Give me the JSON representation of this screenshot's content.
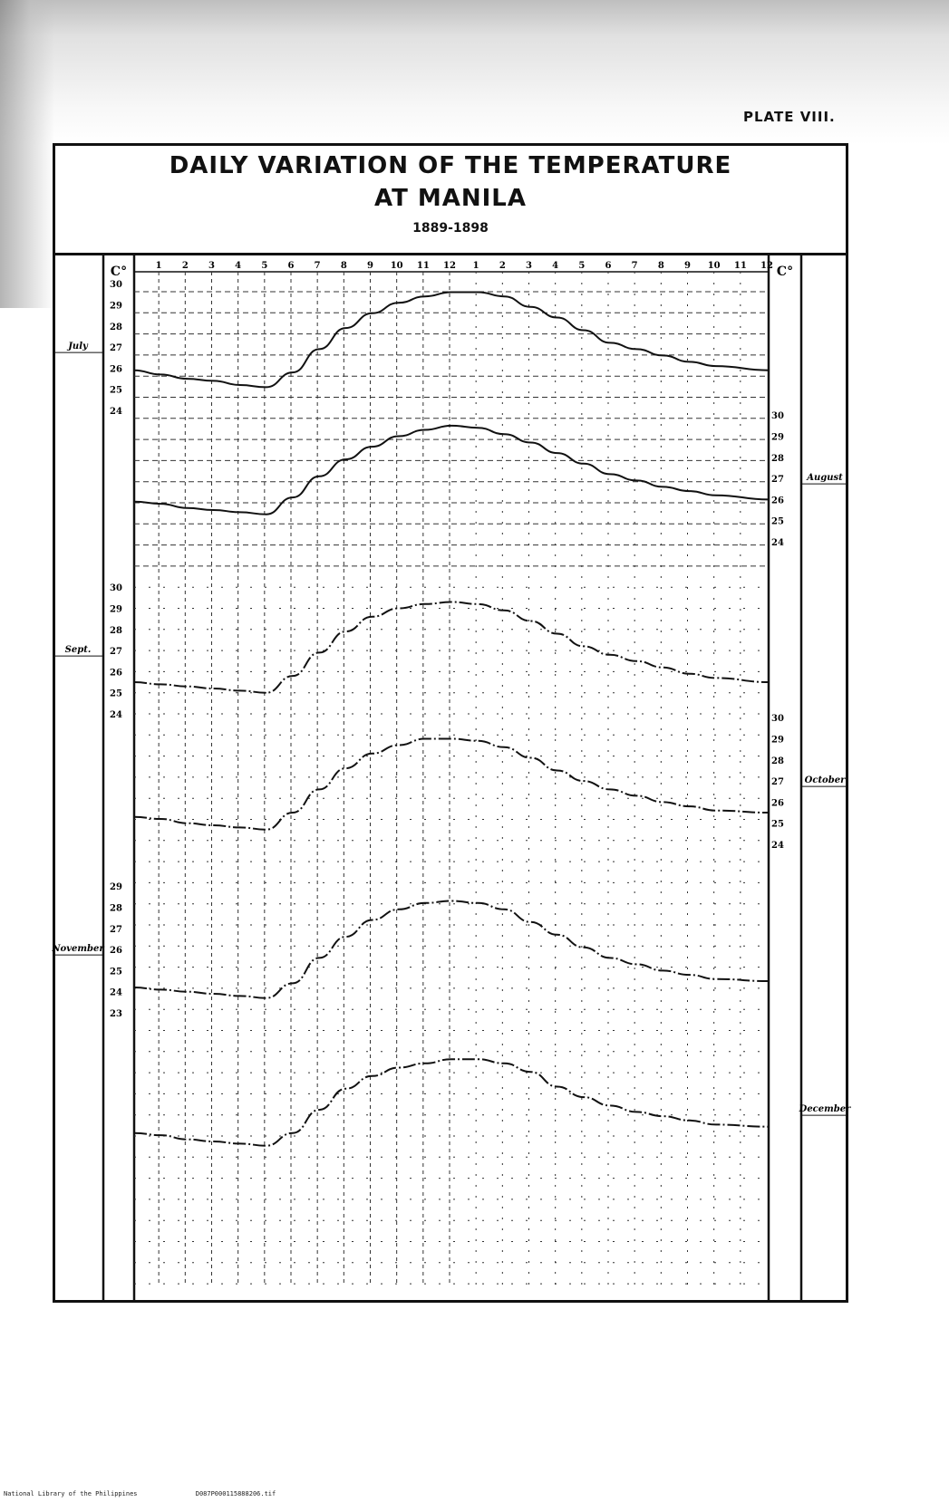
{
  "plate_label": "PLATE VIII.",
  "title_line1": "DAILY VARIATION OF THE TEMPERATURE",
  "title_line2": "AT MANILA",
  "years": "1889-1898",
  "footer": {
    "library": "National Library of the Philippines",
    "file": "D087P000115888206.tif"
  },
  "chart_data": {
    "type": "line",
    "left_unit": "C°",
    "right_unit": "C°",
    "x": [
      "1",
      "2",
      "3",
      "4",
      "5",
      "6",
      "7",
      "8",
      "9",
      "10",
      "11",
      "12",
      "1",
      "2",
      "3",
      "4",
      "5",
      "6",
      "7",
      "8",
      "9",
      "10",
      "11",
      "12"
    ],
    "series": [
      {
        "name": "July",
        "side": "left",
        "scale_ticks": [
          30,
          29,
          28,
          27,
          26,
          25,
          24
        ],
        "ylim": [
          24,
          30
        ],
        "dashed": false,
        "values": [
          25.9,
          25.7,
          25.5,
          25.4,
          25.2,
          25.1,
          25.8,
          26.9,
          27.9,
          28.6,
          29.1,
          29.4,
          29.6,
          29.6,
          29.4,
          28.9,
          28.4,
          27.8,
          27.2,
          26.9,
          26.6,
          26.3,
          26.1,
          25.9
        ]
      },
      {
        "name": "August",
        "side": "right",
        "scale_ticks": [
          30,
          29,
          28,
          27,
          26,
          25,
          24
        ],
        "ylim": [
          24,
          30
        ],
        "dashed": false,
        "values": [
          25.9,
          25.8,
          25.6,
          25.5,
          25.4,
          25.3,
          26.1,
          27.1,
          27.9,
          28.5,
          29.0,
          29.3,
          29.5,
          29.4,
          29.1,
          28.7,
          28.2,
          27.7,
          27.2,
          26.9,
          26.6,
          26.4,
          26.2,
          26.0
        ]
      },
      {
        "name": "Sept.",
        "side": "left",
        "scale_ticks": [
          30,
          29,
          28,
          27,
          26,
          25,
          24
        ],
        "ylim": [
          24,
          30
        ],
        "dashed": true,
        "values": [
          25.5,
          25.4,
          25.3,
          25.2,
          25.1,
          25.0,
          25.8,
          26.9,
          27.9,
          28.6,
          29.0,
          29.2,
          29.3,
          29.2,
          28.9,
          28.4,
          27.8,
          27.2,
          26.8,
          26.5,
          26.2,
          25.9,
          25.7,
          25.5
        ]
      },
      {
        "name": "October",
        "side": "right",
        "scale_ticks": [
          30,
          29,
          28,
          27,
          26,
          25,
          24
        ],
        "ylim": [
          24,
          30
        ],
        "dashed": true,
        "values": [
          25.3,
          25.2,
          25.0,
          24.9,
          24.8,
          24.7,
          25.5,
          26.6,
          27.6,
          28.3,
          28.7,
          29.0,
          29.0,
          28.9,
          28.6,
          28.1,
          27.5,
          27.0,
          26.6,
          26.3,
          26.0,
          25.8,
          25.6,
          25.5
        ]
      },
      {
        "name": "November",
        "side": "left",
        "scale_ticks": [
          29,
          28,
          27,
          26,
          25,
          24,
          23
        ],
        "ylim": [
          23,
          29
        ],
        "dashed": true,
        "values": [
          24.2,
          24.1,
          24.0,
          23.9,
          23.8,
          23.7,
          24.4,
          25.6,
          26.6,
          27.4,
          27.9,
          28.2,
          28.3,
          28.2,
          27.9,
          27.3,
          26.7,
          26.1,
          25.6,
          25.3,
          25.0,
          24.8,
          24.6,
          24.5
        ]
      },
      {
        "name": "December",
        "side": "right",
        "scale_ticks": [],
        "ylim": [
          22,
          28
        ],
        "dashed": true,
        "values": [
          23.9,
          23.8,
          23.6,
          23.5,
          23.4,
          23.3,
          23.9,
          25.0,
          26.0,
          26.6,
          27.0,
          27.2,
          27.4,
          27.4,
          27.2,
          26.8,
          26.1,
          25.6,
          25.2,
          24.9,
          24.7,
          24.5,
          24.3,
          24.2
        ]
      }
    ]
  }
}
